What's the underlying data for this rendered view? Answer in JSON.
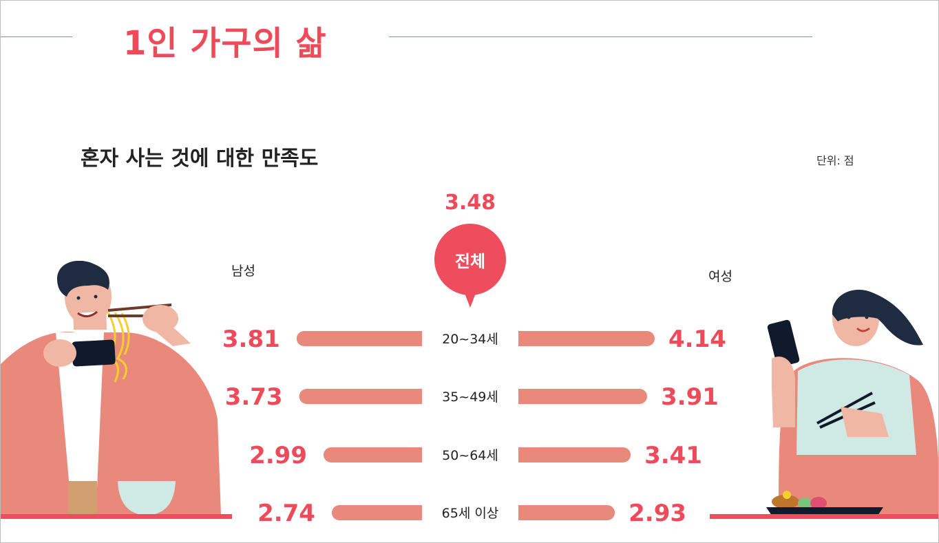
{
  "page": {
    "title": "1인 가구의 삶"
  },
  "chart": {
    "title": "혼자 사는 것에 대한 만족도",
    "unit": "단위: 점",
    "male_label": "남성",
    "female_label": "여성",
    "total_label": "전체",
    "total_value": "3.48"
  },
  "chart_data": {
    "type": "bar",
    "orientation": "horizontal-butterfly",
    "title": "혼자 사는 것에 대한 만족도",
    "unit": "단위: 점",
    "total": {
      "label": "전체",
      "value": 3.48
    },
    "categories": [
      "20~34세",
      "35~49세",
      "50~64세",
      "65세 이상"
    ],
    "series": [
      {
        "name": "남성",
        "values": [
          3.81,
          3.73,
          2.99,
          2.74
        ]
      },
      {
        "name": "여성",
        "values": [
          4.14,
          3.91,
          3.41,
          2.93
        ]
      }
    ],
    "colors": {
      "bar": "#e8897b",
      "value": "#ee4a5a",
      "accent": "#ee4d5d"
    }
  }
}
